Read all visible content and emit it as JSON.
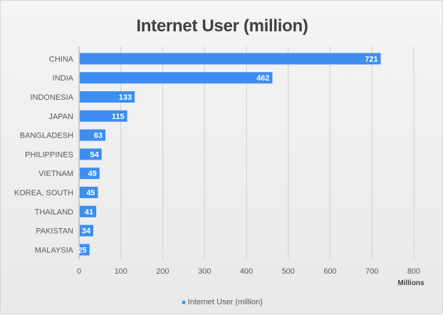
{
  "chart_data": {
    "type": "bar",
    "orientation": "horizontal",
    "title": "Internet User (million)",
    "xlabel": "Millions",
    "ylabel": "",
    "categories": [
      "CHINA",
      "INDIA",
      "INDONESIA",
      "JAPAN",
      "BANGLADESH",
      "PHILIPPINES",
      "VIETNAM",
      "KOREA, SOUTH",
      "THAILAND",
      "PAKISTAN",
      "MALAYSIA"
    ],
    "series": [
      {
        "name": "Internet User (million)",
        "values": [
          721,
          462,
          133,
          115,
          63,
          54,
          49,
          45,
          41,
          34,
          25
        ],
        "color": "#3d8ef0"
      }
    ],
    "xlim": [
      0,
      800
    ],
    "xticks": [
      "0",
      "100",
      "200",
      "300",
      "400",
      "500",
      "600",
      "700",
      "800"
    ],
    "grid": true,
    "legend": "bottom",
    "data_labels": true
  }
}
